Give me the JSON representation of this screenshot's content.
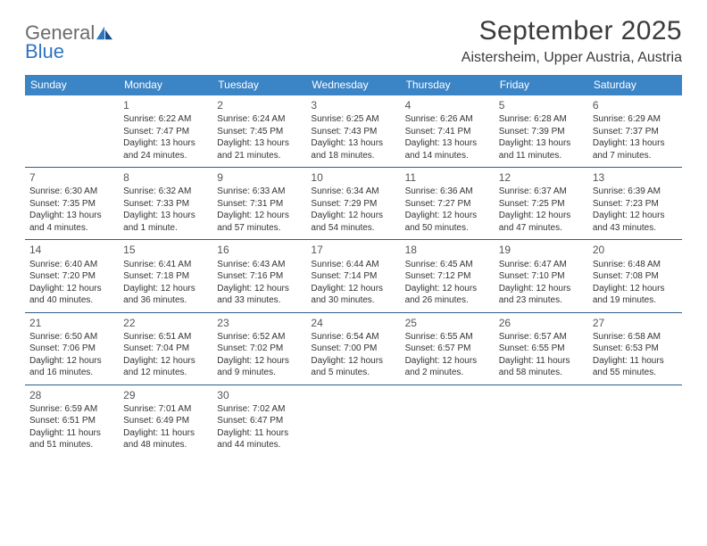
{
  "logo": {
    "general": "General",
    "blue": "Blue"
  },
  "title": "September 2025",
  "location": "Aistersheim, Upper Austria, Austria",
  "colors": {
    "header_bg": "#3b84c6",
    "header_text": "#ffffff",
    "rule": "#2e5d87",
    "body_text": "#333333",
    "logo_grey": "#6b6b6b",
    "logo_blue": "#2f75c1",
    "background": "#ffffff"
  },
  "sizes": {
    "month_title_pt": 30,
    "location_pt": 16,
    "dow_pt": 12,
    "daynum_pt": 12,
    "info_pt": 10
  },
  "dow": [
    "Sunday",
    "Monday",
    "Tuesday",
    "Wednesday",
    "Thursday",
    "Friday",
    "Saturday"
  ],
  "weeks": [
    [
      {
        "n": "",
        "sr": "",
        "ss": "",
        "dl": ""
      },
      {
        "n": "1",
        "sr": "Sunrise: 6:22 AM",
        "ss": "Sunset: 7:47 PM",
        "dl": "Daylight: 13 hours and 24 minutes."
      },
      {
        "n": "2",
        "sr": "Sunrise: 6:24 AM",
        "ss": "Sunset: 7:45 PM",
        "dl": "Daylight: 13 hours and 21 minutes."
      },
      {
        "n": "3",
        "sr": "Sunrise: 6:25 AM",
        "ss": "Sunset: 7:43 PM",
        "dl": "Daylight: 13 hours and 18 minutes."
      },
      {
        "n": "4",
        "sr": "Sunrise: 6:26 AM",
        "ss": "Sunset: 7:41 PM",
        "dl": "Daylight: 13 hours and 14 minutes."
      },
      {
        "n": "5",
        "sr": "Sunrise: 6:28 AM",
        "ss": "Sunset: 7:39 PM",
        "dl": "Daylight: 13 hours and 11 minutes."
      },
      {
        "n": "6",
        "sr": "Sunrise: 6:29 AM",
        "ss": "Sunset: 7:37 PM",
        "dl": "Daylight: 13 hours and 7 minutes."
      }
    ],
    [
      {
        "n": "7",
        "sr": "Sunrise: 6:30 AM",
        "ss": "Sunset: 7:35 PM",
        "dl": "Daylight: 13 hours and 4 minutes."
      },
      {
        "n": "8",
        "sr": "Sunrise: 6:32 AM",
        "ss": "Sunset: 7:33 PM",
        "dl": "Daylight: 13 hours and 1 minute."
      },
      {
        "n": "9",
        "sr": "Sunrise: 6:33 AM",
        "ss": "Sunset: 7:31 PM",
        "dl": "Daylight: 12 hours and 57 minutes."
      },
      {
        "n": "10",
        "sr": "Sunrise: 6:34 AM",
        "ss": "Sunset: 7:29 PM",
        "dl": "Daylight: 12 hours and 54 minutes."
      },
      {
        "n": "11",
        "sr": "Sunrise: 6:36 AM",
        "ss": "Sunset: 7:27 PM",
        "dl": "Daylight: 12 hours and 50 minutes."
      },
      {
        "n": "12",
        "sr": "Sunrise: 6:37 AM",
        "ss": "Sunset: 7:25 PM",
        "dl": "Daylight: 12 hours and 47 minutes."
      },
      {
        "n": "13",
        "sr": "Sunrise: 6:39 AM",
        "ss": "Sunset: 7:23 PM",
        "dl": "Daylight: 12 hours and 43 minutes."
      }
    ],
    [
      {
        "n": "14",
        "sr": "Sunrise: 6:40 AM",
        "ss": "Sunset: 7:20 PM",
        "dl": "Daylight: 12 hours and 40 minutes."
      },
      {
        "n": "15",
        "sr": "Sunrise: 6:41 AM",
        "ss": "Sunset: 7:18 PM",
        "dl": "Daylight: 12 hours and 36 minutes."
      },
      {
        "n": "16",
        "sr": "Sunrise: 6:43 AM",
        "ss": "Sunset: 7:16 PM",
        "dl": "Daylight: 12 hours and 33 minutes."
      },
      {
        "n": "17",
        "sr": "Sunrise: 6:44 AM",
        "ss": "Sunset: 7:14 PM",
        "dl": "Daylight: 12 hours and 30 minutes."
      },
      {
        "n": "18",
        "sr": "Sunrise: 6:45 AM",
        "ss": "Sunset: 7:12 PM",
        "dl": "Daylight: 12 hours and 26 minutes."
      },
      {
        "n": "19",
        "sr": "Sunrise: 6:47 AM",
        "ss": "Sunset: 7:10 PM",
        "dl": "Daylight: 12 hours and 23 minutes."
      },
      {
        "n": "20",
        "sr": "Sunrise: 6:48 AM",
        "ss": "Sunset: 7:08 PM",
        "dl": "Daylight: 12 hours and 19 minutes."
      }
    ],
    [
      {
        "n": "21",
        "sr": "Sunrise: 6:50 AM",
        "ss": "Sunset: 7:06 PM",
        "dl": "Daylight: 12 hours and 16 minutes."
      },
      {
        "n": "22",
        "sr": "Sunrise: 6:51 AM",
        "ss": "Sunset: 7:04 PM",
        "dl": "Daylight: 12 hours and 12 minutes."
      },
      {
        "n": "23",
        "sr": "Sunrise: 6:52 AM",
        "ss": "Sunset: 7:02 PM",
        "dl": "Daylight: 12 hours and 9 minutes."
      },
      {
        "n": "24",
        "sr": "Sunrise: 6:54 AM",
        "ss": "Sunset: 7:00 PM",
        "dl": "Daylight: 12 hours and 5 minutes."
      },
      {
        "n": "25",
        "sr": "Sunrise: 6:55 AM",
        "ss": "Sunset: 6:57 PM",
        "dl": "Daylight: 12 hours and 2 minutes."
      },
      {
        "n": "26",
        "sr": "Sunrise: 6:57 AM",
        "ss": "Sunset: 6:55 PM",
        "dl": "Daylight: 11 hours and 58 minutes."
      },
      {
        "n": "27",
        "sr": "Sunrise: 6:58 AM",
        "ss": "Sunset: 6:53 PM",
        "dl": "Daylight: 11 hours and 55 minutes."
      }
    ],
    [
      {
        "n": "28",
        "sr": "Sunrise: 6:59 AM",
        "ss": "Sunset: 6:51 PM",
        "dl": "Daylight: 11 hours and 51 minutes."
      },
      {
        "n": "29",
        "sr": "Sunrise: 7:01 AM",
        "ss": "Sunset: 6:49 PM",
        "dl": "Daylight: 11 hours and 48 minutes."
      },
      {
        "n": "30",
        "sr": "Sunrise: 7:02 AM",
        "ss": "Sunset: 6:47 PM",
        "dl": "Daylight: 11 hours and 44 minutes."
      },
      {
        "n": "",
        "sr": "",
        "ss": "",
        "dl": ""
      },
      {
        "n": "",
        "sr": "",
        "ss": "",
        "dl": ""
      },
      {
        "n": "",
        "sr": "",
        "ss": "",
        "dl": ""
      },
      {
        "n": "",
        "sr": "",
        "ss": "",
        "dl": ""
      }
    ]
  ]
}
